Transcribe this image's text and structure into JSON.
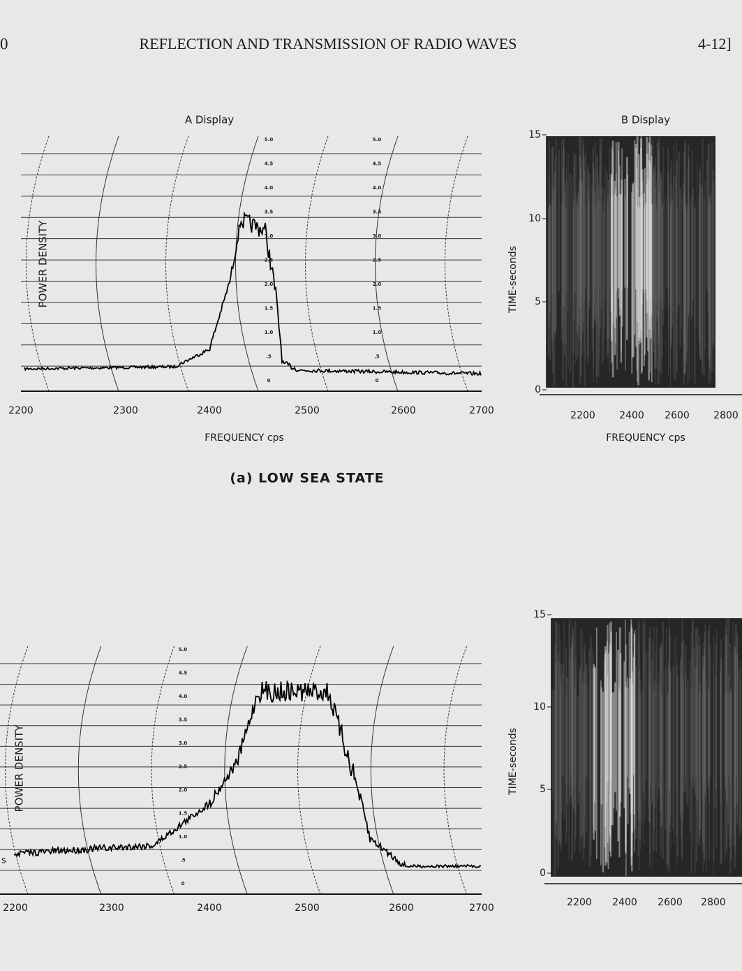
{
  "header": {
    "page_number": "0",
    "title": "REFLECTION AND TRANSMISSION OF RADIO WAVES",
    "section": "4-12]"
  },
  "figure_a": {
    "a_display_title": "A Display",
    "b_display_title": "B Display",
    "y_label": "POWER DENSITY",
    "x_ticks": [
      "2200",
      "2300",
      "2400",
      "2500",
      "2600",
      "2700"
    ],
    "x_label": "FREQUENCY cps",
    "scale_labels": [
      "5.0",
      "4.5",
      "4.0",
      "3.5",
      "3.0",
      "2.5",
      "2.0",
      "1.5",
      "1.0",
      ".5",
      "0"
    ],
    "b_y_label": "TIME-seconds",
    "b_y_ticks": [
      "15",
      "10",
      "5",
      "0"
    ],
    "b_x_ticks": [
      "2200",
      "2400",
      "2600",
      "2800"
    ],
    "b_x_label": "FREQUENCY cps",
    "caption": "(a) LOW SEA STATE"
  },
  "figure_b": {
    "y_label": "POWER DENSITY",
    "x_ticks": [
      "2200",
      "2300",
      "2400",
      "2500",
      "2600",
      "2700"
    ],
    "scale_labels": [
      "5.0",
      "4.5",
      "4.0",
      "3.5",
      "3.0",
      "2.5",
      "2.0",
      "1.5",
      "1.0",
      ".5",
      "0"
    ],
    "b_y_label": "TIME-seconds",
    "b_y_ticks": [
      "15",
      "10",
      "5",
      "0"
    ],
    "b_x_ticks": [
      "2200",
      "2400",
      "2600",
      "2800"
    ],
    "edge_fragment": "s"
  }
}
